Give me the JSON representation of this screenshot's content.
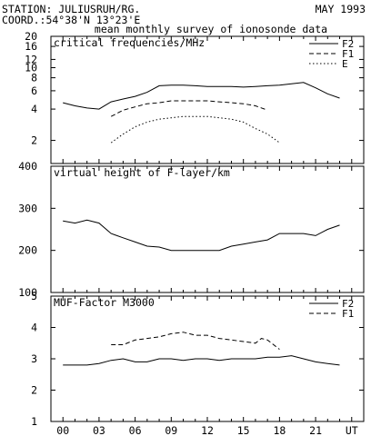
{
  "header": {
    "station": "STATION: JULIUSRUH/RG.",
    "coord": "COORD.:54°38'N 13°23'E",
    "date": "MAY 1993",
    "subtitle": "mean monthly survey of ionosonde data"
  },
  "chart_data": [
    {
      "type": "line",
      "title": "critical frequencies/MHz",
      "yscale": "log",
      "ylim": [
        1.2,
        20
      ],
      "yticks": [
        2,
        4,
        6,
        8,
        10,
        12,
        16,
        20
      ],
      "xlim": [
        -1,
        25
      ],
      "xticks": [
        "00",
        "03",
        "06",
        "09",
        "12",
        "15",
        "18",
        "21",
        "UT"
      ],
      "legend": "top-right",
      "series": [
        {
          "name": "F2",
          "style": "solid",
          "x": [
            0,
            1,
            2,
            3,
            4,
            5,
            6,
            7,
            8,
            9,
            10,
            11,
            12,
            13,
            14,
            15,
            16,
            17,
            18,
            19,
            20,
            21,
            22,
            23
          ],
          "y": [
            4.6,
            4.3,
            4.1,
            4.0,
            4.7,
            5.0,
            5.3,
            5.8,
            6.7,
            6.8,
            6.8,
            6.7,
            6.6,
            6.6,
            6.6,
            6.5,
            6.6,
            6.7,
            6.8,
            7.0,
            7.2,
            6.4,
            5.6,
            5.1
          ]
        },
        {
          "name": "F1",
          "style": "dashed",
          "x": [
            4,
            5,
            6,
            7,
            8,
            9,
            10,
            11,
            12,
            13,
            14,
            15,
            16,
            17
          ],
          "y": [
            3.4,
            3.9,
            4.2,
            4.5,
            4.6,
            4.8,
            4.8,
            4.8,
            4.8,
            4.7,
            4.6,
            4.5,
            4.3,
            3.9
          ]
        },
        {
          "name": "E",
          "style": "dotted",
          "x": [
            4,
            5,
            6,
            7,
            8,
            9,
            10,
            11,
            12,
            13,
            14,
            15,
            16,
            17,
            18
          ],
          "y": [
            1.9,
            2.3,
            2.7,
            3.0,
            3.2,
            3.3,
            3.4,
            3.4,
            3.4,
            3.3,
            3.2,
            3.0,
            2.6,
            2.3,
            1.9
          ]
        }
      ]
    },
    {
      "type": "line",
      "title": "virtual height of F-layer/km",
      "ylim": [
        100,
        400
      ],
      "yticks": [
        100,
        200,
        300,
        400
      ],
      "xlim": [
        -1,
        25
      ],
      "xticks": [
        "00",
        "03",
        "06",
        "09",
        "12",
        "15",
        "18",
        "21",
        "UT"
      ],
      "series": [
        {
          "style": "solid",
          "x": [
            0,
            1,
            2,
            3,
            4,
            5,
            6,
            7,
            8,
            9,
            10,
            11,
            12,
            13,
            14,
            15,
            16,
            17,
            18,
            19,
            20,
            21,
            22,
            23
          ],
          "y": [
            270,
            265,
            272,
            265,
            240,
            230,
            220,
            210,
            208,
            200,
            200,
            200,
            200,
            200,
            210,
            215,
            220,
            225,
            240,
            240,
            240,
            235,
            250,
            260
          ]
        }
      ]
    },
    {
      "type": "line",
      "title": "MUF-Factor M3000",
      "ylim": [
        1,
        5
      ],
      "yticks": [
        1,
        2,
        3,
        4,
        5
      ],
      "xlim": [
        -1,
        25
      ],
      "xticks": [
        "00",
        "03",
        "06",
        "09",
        "12",
        "15",
        "18",
        "21",
        "UT"
      ],
      "legend": "top-right",
      "series": [
        {
          "name": "F2",
          "style": "solid",
          "x": [
            0,
            1,
            2,
            3,
            4,
            5,
            6,
            7,
            8,
            9,
            10,
            11,
            12,
            13,
            14,
            15,
            16,
            17,
            18,
            19,
            20,
            21,
            22,
            23
          ],
          "y": [
            2.8,
            2.8,
            2.8,
            2.85,
            2.95,
            3.0,
            2.9,
            2.9,
            3.0,
            3.0,
            2.95,
            3.0,
            3.0,
            2.95,
            3.0,
            3.0,
            3.0,
            3.05,
            3.05,
            3.1,
            3.0,
            2.9,
            2.85,
            2.8
          ]
        },
        {
          "name": "F1",
          "style": "dashed",
          "x": [
            4,
            5,
            6,
            7,
            8,
            9,
            10,
            11,
            12,
            13,
            14,
            15,
            16,
            16.5,
            17,
            18
          ],
          "y": [
            3.45,
            3.45,
            3.6,
            3.65,
            3.7,
            3.8,
            3.85,
            3.75,
            3.75,
            3.65,
            3.6,
            3.55,
            3.5,
            3.65,
            3.6,
            3.3
          ]
        }
      ]
    }
  ]
}
